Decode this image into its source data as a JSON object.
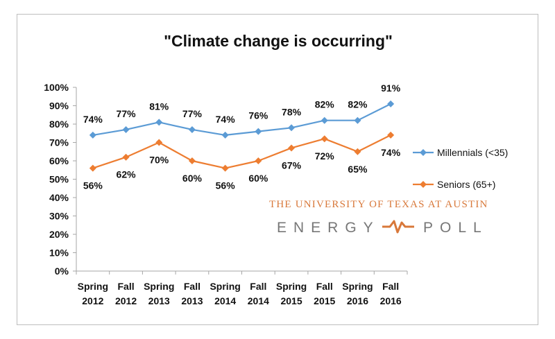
{
  "chart_data": {
    "type": "line",
    "title": "\"Climate change is occurring\"",
    "categories": [
      [
        "Spring",
        "2012"
      ],
      [
        "Fall",
        "2012"
      ],
      [
        "Spring",
        "2013"
      ],
      [
        "Fall",
        "2013"
      ],
      [
        "Spring",
        "2014"
      ],
      [
        "Fall",
        "2014"
      ],
      [
        "Spring",
        "2015"
      ],
      [
        "Fall",
        "2015"
      ],
      [
        "Spring",
        "2016"
      ],
      [
        "Fall",
        "2016"
      ]
    ],
    "ylim": [
      0,
      100
    ],
    "yticks": [
      "0%",
      "10%",
      "20%",
      "30%",
      "40%",
      "50%",
      "60%",
      "70%",
      "80%",
      "90%",
      "100%"
    ],
    "grid": false,
    "legend_position": "right",
    "series": [
      {
        "name": "Millennials (<35)",
        "color": "#5b9bd5",
        "values": [
          74,
          77,
          81,
          77,
          74,
          76,
          78,
          82,
          82,
          91
        ],
        "labels": [
          "74%",
          "77%",
          "81%",
          "77%",
          "74%",
          "76%",
          "78%",
          "82%",
          "82%",
          "91%"
        ]
      },
      {
        "name": "Seniors (65+)",
        "color": "#ed7d31",
        "values": [
          56,
          62,
          70,
          60,
          56,
          60,
          67,
          72,
          65,
          74
        ],
        "labels": [
          "56%",
          "62%",
          "70%",
          "60%",
          "56%",
          "60%",
          "67%",
          "72%",
          "65%",
          "74%"
        ]
      }
    ]
  },
  "branding": {
    "line1": "THE UNIVERSITY OF TEXAS AT AUSTIN",
    "word_left": "ENERGY",
    "word_right": "POLL",
    "accent_color": "#d8783a"
  }
}
